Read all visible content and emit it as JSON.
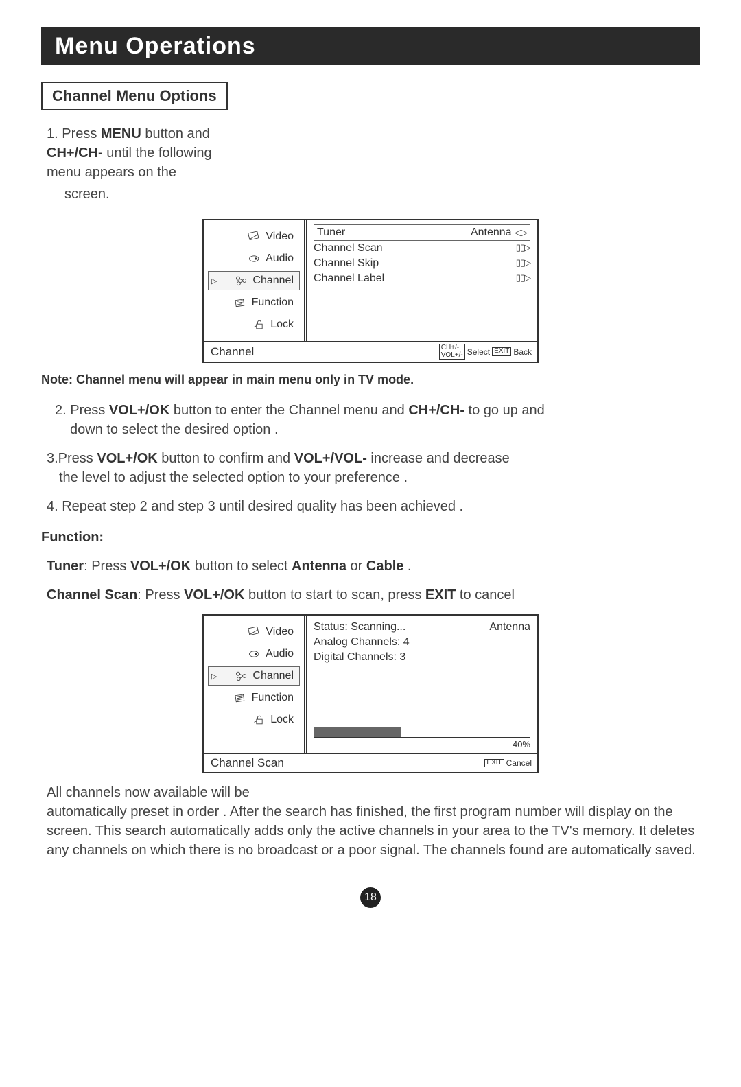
{
  "page_title": "Menu Operations",
  "section_heading": "Channel Menu Options",
  "step1": {
    "prefix": "1. Press ",
    "b1": "MENU",
    "mid": " button and ",
    "b2": "CH+/CH-",
    "suffix": " until the following menu appears on the",
    "suffix2": "screen."
  },
  "note": "Note: Channel menu will appear in main menu only in TV mode.",
  "step2": {
    "prefix": "2. Press ",
    "b1": "VOL+/OK",
    "mid": " button to enter the Channel menu and ",
    "b2": "CH+/CH-",
    "suffix": " to go up and",
    "line2": "down to select the desired option ."
  },
  "step3": {
    "prefix": "3.Press ",
    "b1": "VOL+/OK",
    "mid": " button to confirm and ",
    "b2": "VOL+/VOL-",
    "suffix": " increase and decrease",
    "line2": "the level to adjust the selected option to your preference ."
  },
  "step4": "4. Repeat step 2 and step 3 until desired quality has been achieved .",
  "fn_heading": "Function:",
  "tuner_line": {
    "b1": "Tuner",
    "t1": ": Press ",
    "b2": "VOL+/OK",
    "t2": " button to select ",
    "b3": "Antenna",
    "t3": " or ",
    "b4": "Cable",
    "t4": " ."
  },
  "chscan_line": {
    "b1": "Channel Scan",
    "t1": ": Press ",
    "b2": "VOL+/OK",
    "t2": " button to start to scan, press ",
    "b3": "EXIT",
    "t3": " to cancel"
  },
  "para_after": "All channels now available will be\nautomatically preset in order . After the search has finished, the first program number will display on the screen. This search automatically adds only the active channels in your area to the TV's memory. It deletes any channels on which there is no broadcast or a poor signal. The channels found are automatically saved.",
  "osd": {
    "sidebar": [
      {
        "label": "Video",
        "icon": "video",
        "selected": false
      },
      {
        "label": "Audio",
        "icon": "audio",
        "selected": false
      },
      {
        "label": "Channel",
        "icon": "channel",
        "selected": true
      },
      {
        "label": "Function",
        "icon": "function",
        "selected": false
      },
      {
        "label": "Lock",
        "icon": "lock",
        "selected": false
      }
    ],
    "menu1": {
      "rows": [
        {
          "label": "Tuner",
          "value": "Antenna",
          "arrows": "◁▷",
          "boxed": true
        },
        {
          "label": "Channel Scan",
          "value": "",
          "arrows": "▯▯▷",
          "boxed": false
        },
        {
          "label": "Channel Skip",
          "value": "",
          "arrows": "▯▯▷",
          "boxed": false
        },
        {
          "label": "Channel Label",
          "value": "",
          "arrows": "▯▯▷",
          "boxed": false
        }
      ],
      "footer_name": "Channel",
      "footer_key1a": "CH+/-",
      "footer_key1b": "VOL+/-",
      "footer_hint1": "Select",
      "footer_key2": "EXIT",
      "footer_hint2": "Back"
    },
    "menu2": {
      "status": "Status: Scanning...",
      "status_val": "Antenna",
      "analog": "Analog Channels: 4",
      "digital": "Digital Channels: 3",
      "progress_pct": 40,
      "progress_label": "40%",
      "footer_name": "Channel Scan",
      "footer_key": "EXIT",
      "footer_hint": "Cancel"
    }
  },
  "page_number": "18"
}
